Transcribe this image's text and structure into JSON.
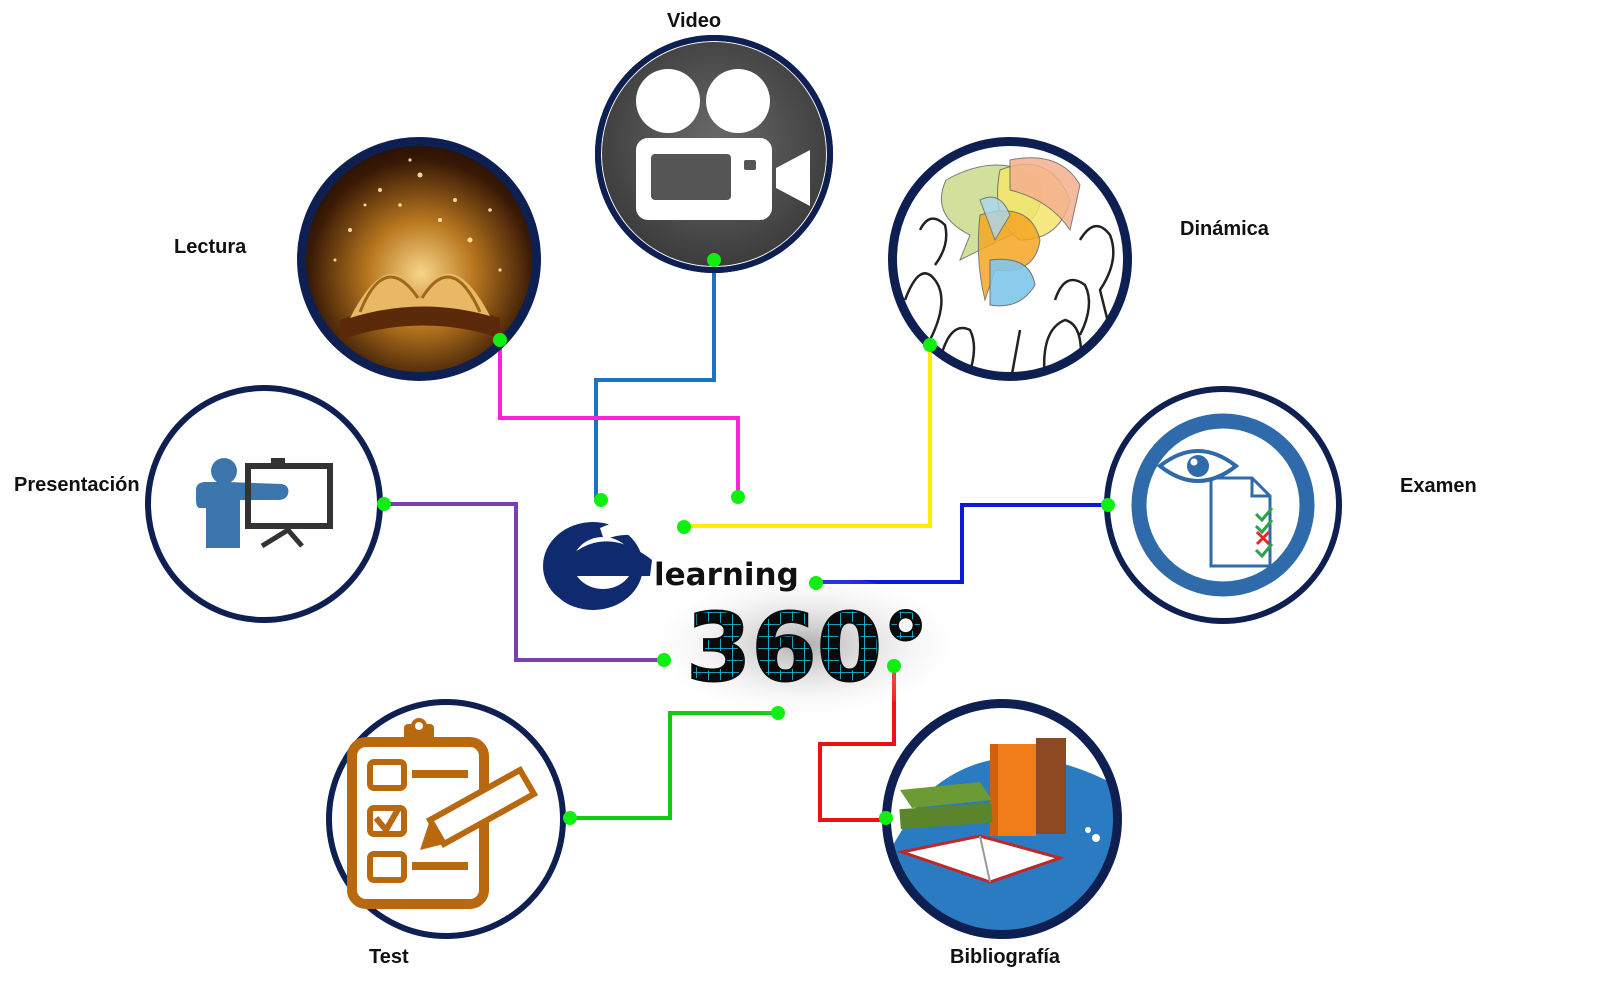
{
  "center_logo": {
    "letter": "e",
    "word": "learning",
    "number": "360°"
  },
  "nodes": [
    {
      "id": "video",
      "label": "Video",
      "icon": "video-camera-icon",
      "line_color": "#1a73c4"
    },
    {
      "id": "lectura",
      "label": "Lectura",
      "icon": "open-book-icon",
      "line_color": "#ff22dd"
    },
    {
      "id": "dinamica",
      "label": "Dinámica",
      "icon": "speech-bubbles-crowd-icon",
      "line_color": "#ffee00"
    },
    {
      "id": "presentacion",
      "label": "Presentación",
      "icon": "presenter-board-icon",
      "line_color": "#7a3fb0"
    },
    {
      "id": "examen",
      "label": "Examen",
      "icon": "exam-eye-checklist-icon",
      "line_color": "#0a1ad8"
    },
    {
      "id": "test",
      "label": "Test",
      "icon": "clipboard-checklist-icon",
      "line_color": "#11cc11"
    },
    {
      "id": "bibliografia",
      "label": "Bibliografía",
      "icon": "books-stack-icon",
      "line_color": "#ee1111"
    }
  ],
  "colors": {
    "ring": "#0e1f52",
    "connector_dot": "#11ee11",
    "logo_blue": "#0f2a6e",
    "grid_cyan": "#22c4ee"
  }
}
